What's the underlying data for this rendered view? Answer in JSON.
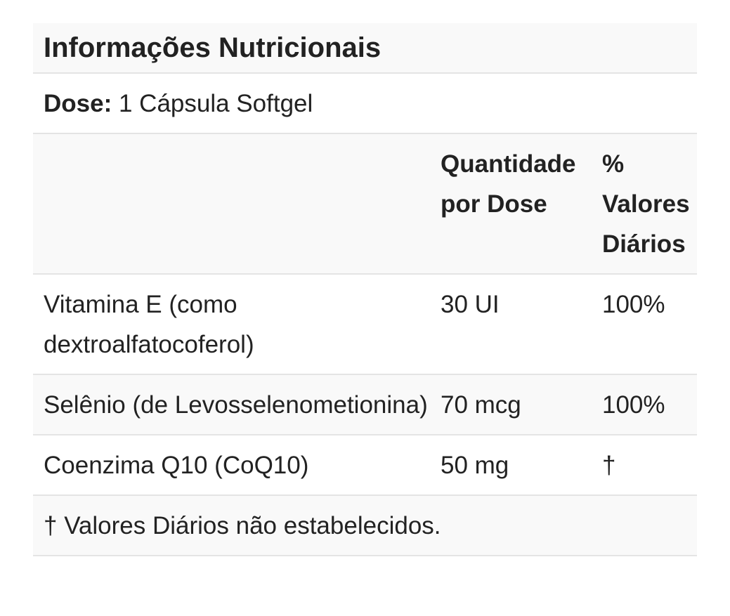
{
  "nutrition_table": {
    "title": "Informações Nutricionais",
    "serving": {
      "label": "Dose:",
      "value": "1 Cápsula Softgel"
    },
    "columns": {
      "name": "",
      "amount": "Quantidade por Dose",
      "daily_value": "% Valores Diários"
    },
    "rows": [
      {
        "name": "Vitamina E (como dextroalfatocoferol)",
        "amount": "30 UI",
        "daily_value": "100%"
      },
      {
        "name": "Selênio (de Levosselenometionina)",
        "amount": "70 mcg",
        "daily_value": "100%"
      },
      {
        "name": "Coenzima Q10 (CoQ10)",
        "amount": "50 mg",
        "daily_value": "†"
      }
    ],
    "footnote": "† Valores Diários não estabelecidos.",
    "colors": {
      "text": "#222222",
      "stripe_background": "#f9f9f9",
      "divider": "#e4e4e4",
      "page_background": "#ffffff"
    }
  }
}
